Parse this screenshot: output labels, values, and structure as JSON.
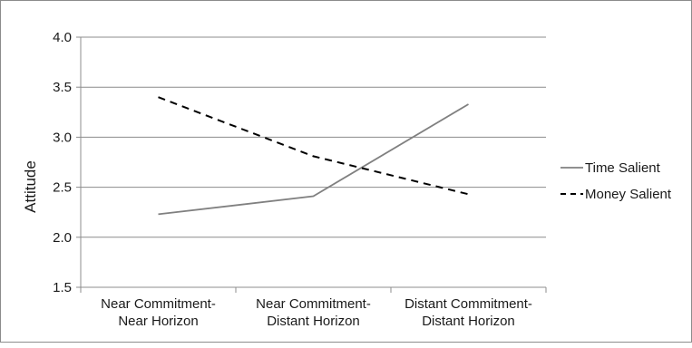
{
  "chart_data": {
    "type": "line",
    "title": "",
    "xlabel": "",
    "ylabel": "Attitude",
    "ylim": [
      1.5,
      4.0
    ],
    "yticks": [
      "1.5",
      "2.0",
      "2.5",
      "3.0",
      "3.5",
      "4.0"
    ],
    "categories": [
      [
        "Near Commitment-",
        "Near Horizon"
      ],
      [
        "Near Commitment-",
        "Distant Horizon"
      ],
      [
        "Distant Commitment-",
        "Distant Horizon"
      ]
    ],
    "grid": true,
    "legend_position": "right",
    "series": [
      {
        "name": "Time Salient",
        "values": [
          2.23,
          2.41,
          3.33
        ],
        "color": "#808080",
        "dash": "solid"
      },
      {
        "name": "Money Salient",
        "values": [
          3.4,
          2.81,
          2.43
        ],
        "color": "#000000",
        "dash": "dashed"
      }
    ]
  }
}
